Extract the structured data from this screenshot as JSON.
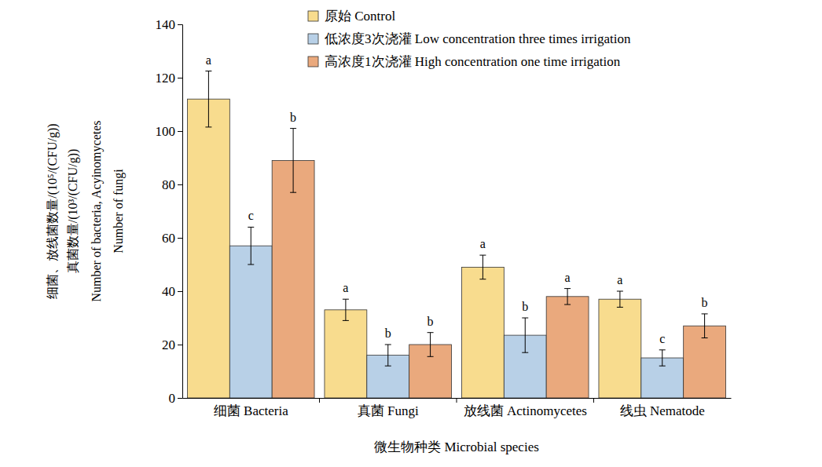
{
  "chart_data": {
    "type": "bar",
    "x_label": "微生物种类 Microbial species",
    "y_label": [
      "细菌、放线菌数量/(10⁵/(CFU/g))",
      "真菌数量/(10³/(CFU/g))",
      "Number of bacteria, Acyinomycetes",
      "Number of fungi"
    ],
    "categories": [
      "细菌 Bacteria",
      "真菌 Fungi",
      "放线菌 Actinomycetes",
      "线虫 Nematode"
    ],
    "series": [
      {
        "name": "原始 Control",
        "color": "#f8dc8e",
        "values": [
          112,
          33,
          49,
          37
        ],
        "errors": [
          10.5,
          4,
          4.5,
          3
        ],
        "significance": [
          "a",
          "a",
          "a",
          "a"
        ]
      },
      {
        "name": "低浓度3次浇灌 Low concentration three times irrigation",
        "color": "#b8d0e7",
        "values": [
          57,
          16,
          23.5,
          15
        ],
        "errors": [
          7,
          4,
          6.5,
          3
        ],
        "significance": [
          "c",
          "b",
          "b",
          "c"
        ]
      },
      {
        "name": "高浓度1次浇灌 High concentration one time irrigation",
        "color": "#eaa97d",
        "values": [
          89,
          20,
          38,
          27
        ],
        "errors": [
          12,
          4.5,
          3,
          4.5
        ],
        "significance": [
          "b",
          "b",
          "a",
          "b"
        ]
      }
    ],
    "ylim": [
      0,
      140
    ],
    "yticks": [
      0,
      20,
      40,
      60,
      80,
      100,
      120,
      140
    ],
    "grid": false,
    "legend": "top"
  }
}
